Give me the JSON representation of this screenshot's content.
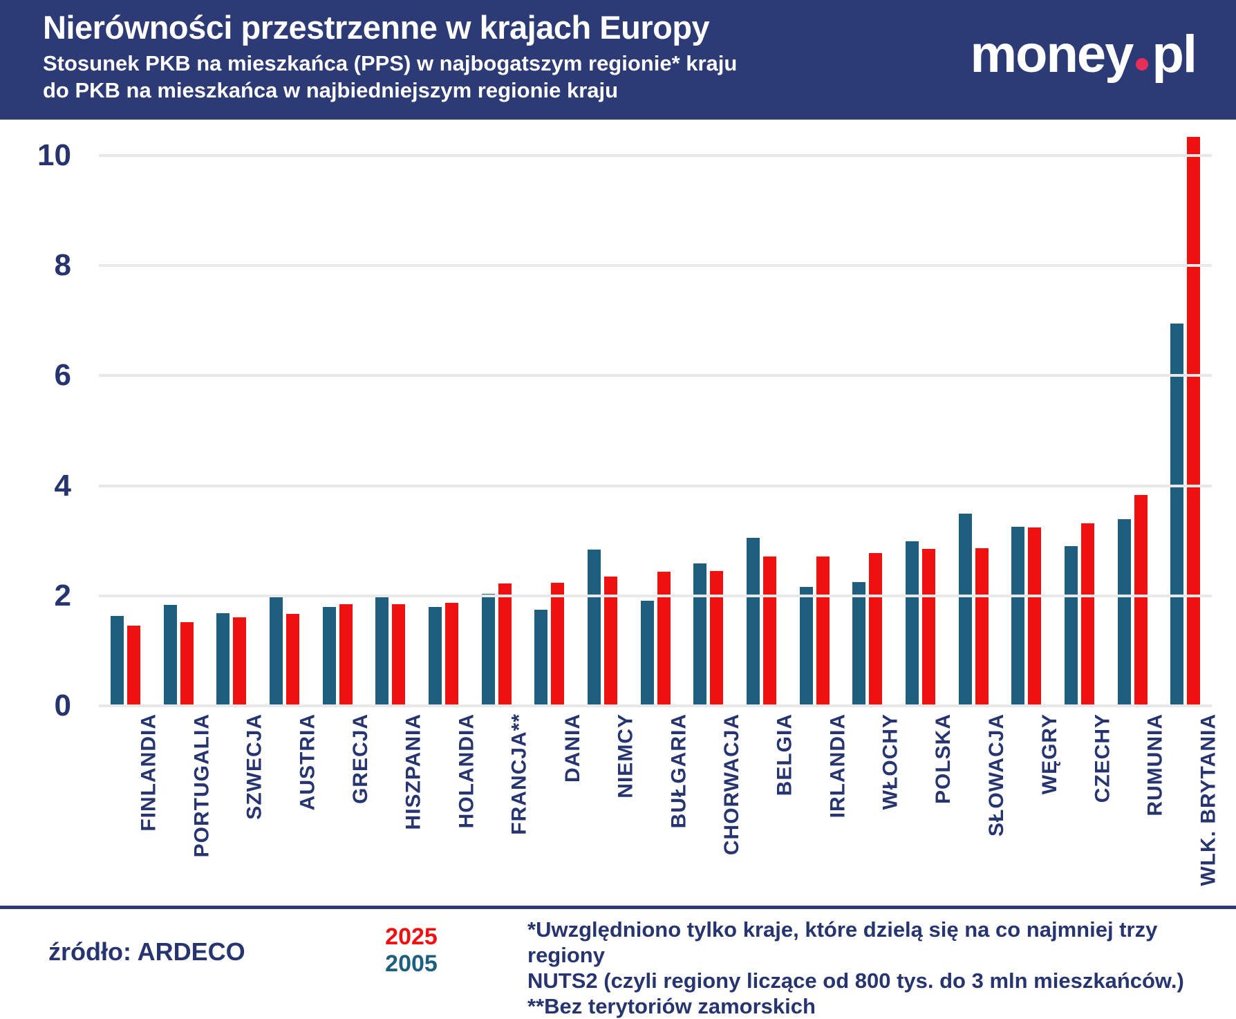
{
  "header": {
    "title": "Nierówności przestrzenne w krajach Europy",
    "subtitle_line1": "Stosunek  PKB na mieszkańca (PPS) w najbogatszym regionie* kraju",
    "subtitle_line2": "do PKB na mieszkańca w najbiedniejszym regionie kraju",
    "logo": {
      "text1": "money",
      "dot_color": "#e62e58",
      "text2": "pl"
    }
  },
  "chart_data": {
    "type": "bar",
    "title": "Nierówności przestrzenne w krajach Europy",
    "subtitle": "Stosunek PKB na mieszkańca (PPS) w najbogatszym regionie* kraju do PKB na mieszkańca w najbiedniejszym regionie kraju",
    "categories": [
      "FINLANDIA",
      "PORTUGALIA",
      "SZWECJA",
      "AUSTRIA",
      "GRECJA",
      "HISZPANIA",
      "HOLANDIA",
      "FRANCJA**",
      "DANIA",
      "NIEMCY",
      "BUŁGARIA",
      "CHORWACJA",
      "BELGIA",
      "IRLANDIA",
      "WŁOCHY",
      "POLSKA",
      "SŁOWACJA",
      "WĘGRY",
      "CZECHY",
      "RUMUNIA",
      "WLK. BRYTANIA"
    ],
    "series": [
      {
        "name": "2005",
        "color": "#1e5f7f",
        "values": [
          1.65,
          1.85,
          1.7,
          2.0,
          1.81,
          1.98,
          1.81,
          2.05,
          1.76,
          2.85,
          1.92,
          2.6,
          3.07,
          2.17,
          2.26,
          3.0,
          3.5,
          3.27,
          2.92,
          3.41,
          6.96
        ]
      },
      {
        "name": "2025",
        "color": "#ef1010",
        "values": [
          1.47,
          1.53,
          1.62,
          1.68,
          1.86,
          1.86,
          1.88,
          2.23,
          2.25,
          2.36,
          2.45,
          2.46,
          2.72,
          2.73,
          2.79,
          2.86,
          2.88,
          3.25,
          3.33,
          3.84,
          10.35
        ]
      }
    ],
    "xlabel": "",
    "ylabel": "",
    "ylim": [
      0,
      10
    ],
    "yticks": [
      0,
      2,
      4,
      6,
      8,
      10
    ],
    "grid": true,
    "legend_position": "bottom-left"
  },
  "footer": {
    "source": "źródło: ARDECO",
    "legend": [
      {
        "label": "2025",
        "color": "#ef1010"
      },
      {
        "label": "2005",
        "color": "#1e5f7f"
      }
    ],
    "footnotes": [
      "*Uwzględniono tylko kraje, które dzielą się na co najmniej trzy regiony",
      "NUTS2 (czyli regiony liczące od 800 tys. do 3 mln mieszkańców.)",
      "**Bez terytoriów zamorskich"
    ]
  }
}
